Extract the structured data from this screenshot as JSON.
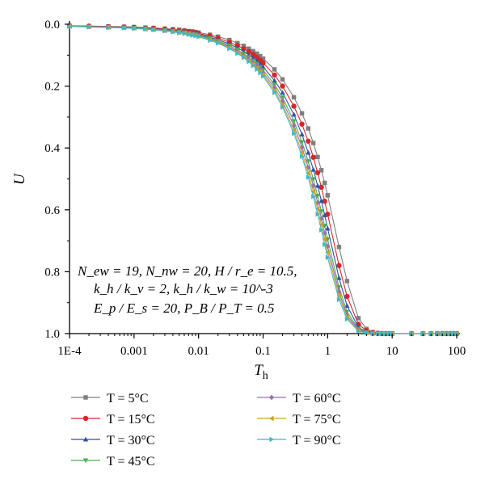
{
  "chart_data": {
    "type": "line",
    "title": "",
    "xlabel": "T_h",
    "ylabel": "U",
    "xscale": "log",
    "xlim": [
      0.0001,
      100
    ],
    "ylim": [
      1.0,
      0.0
    ],
    "y_inverted": true,
    "grid": false,
    "legend_position": "bottom",
    "x_ticks": [
      0.0001,
      0.001,
      0.01,
      0.1,
      1,
      10,
      100
    ],
    "x_tick_labels": [
      "1E-4",
      "0.001",
      "0.01",
      "0.1",
      "1",
      "10",
      "100"
    ],
    "y_ticks": [
      0.0,
      0.2,
      0.4,
      0.6,
      0.8,
      1.0
    ],
    "y_tick_labels": [
      "0.0",
      "0.2",
      "0.4",
      "0.6",
      "0.8",
      "1.0"
    ],
    "annotation": {
      "line1": "N_ew = 19, N_nw = 20, H / r_e = 10.5,",
      "line2": "k_h / k_v = 2, k_h / k_w = 10^-3",
      "line3": "E_p / E_s = 20, P_B / P_T = 0.5"
    },
    "x_samples": [
      0.0001,
      0.0002,
      0.0004,
      0.0007,
      0.001,
      0.0015,
      0.002,
      0.003,
      0.004,
      0.005,
      0.006,
      0.007,
      0.008,
      0.009,
      0.01,
      0.015,
      0.02,
      0.03,
      0.04,
      0.05,
      0.06,
      0.07,
      0.08,
      0.09,
      0.1,
      0.15,
      0.2,
      0.3,
      0.4,
      0.5,
      0.6,
      0.7,
      0.8,
      0.9,
      1,
      1.5,
      2,
      3,
      4,
      5,
      6,
      7,
      8,
      9,
      10,
      20,
      30,
      40,
      50,
      60,
      70,
      80,
      90,
      100
    ],
    "series": [
      {
        "name": "T = 5°C",
        "color": "#7f7f7f",
        "marker": "square",
        "values": [
          0.005,
          0.006,
          0.007,
          0.008,
          0.009,
          0.011,
          0.012,
          0.014,
          0.016,
          0.018,
          0.02,
          0.022,
          0.023,
          0.025,
          0.027,
          0.034,
          0.04,
          0.051,
          0.061,
          0.07,
          0.079,
          0.087,
          0.095,
          0.103,
          0.111,
          0.146,
          0.178,
          0.236,
          0.288,
          0.337,
          0.384,
          0.429,
          0.472,
          0.513,
          0.553,
          0.72,
          0.83,
          0.95,
          0.985,
          0.995,
          0.998,
          0.999,
          1.0,
          1.0,
          1.0,
          1.0,
          1.0,
          1.0,
          1.0,
          1.0,
          1.0,
          1.0,
          1.0,
          1.0
        ]
      },
      {
        "name": "T = 15°C",
        "color": "#d62728",
        "marker": "circle",
        "values": [
          0.005,
          0.006,
          0.008,
          0.009,
          0.01,
          0.012,
          0.013,
          0.016,
          0.018,
          0.02,
          0.022,
          0.024,
          0.026,
          0.028,
          0.03,
          0.038,
          0.045,
          0.058,
          0.069,
          0.079,
          0.089,
          0.098,
          0.107,
          0.116,
          0.125,
          0.164,
          0.2,
          0.265,
          0.323,
          0.378,
          0.43,
          0.48,
          0.527,
          0.572,
          0.614,
          0.78,
          0.88,
          0.97,
          0.99,
          0.997,
          0.999,
          1.0,
          1.0,
          1.0,
          1.0,
          1.0,
          1.0,
          1.0,
          1.0,
          1.0,
          1.0,
          1.0,
          1.0,
          1.0
        ]
      },
      {
        "name": "T = 30°C",
        "color": "#2f52a8",
        "marker": "triangle-up",
        "values": [
          0.006,
          0.007,
          0.009,
          0.01,
          0.011,
          0.013,
          0.015,
          0.018,
          0.02,
          0.022,
          0.025,
          0.027,
          0.029,
          0.031,
          0.033,
          0.042,
          0.05,
          0.064,
          0.076,
          0.088,
          0.099,
          0.109,
          0.119,
          0.128,
          0.138,
          0.182,
          0.221,
          0.292,
          0.356,
          0.415,
          0.47,
          0.522,
          0.571,
          0.617,
          0.66,
          0.82,
          0.91,
          0.98,
          0.994,
          0.998,
          0.999,
          1.0,
          1.0,
          1.0,
          1.0,
          1.0,
          1.0,
          1.0,
          1.0,
          1.0,
          1.0,
          1.0,
          1.0,
          1.0
        ]
      },
      {
        "name": "T = 45°C",
        "color": "#4caf50",
        "marker": "triangle-down",
        "values": [
          0.006,
          0.008,
          0.009,
          0.011,
          0.012,
          0.014,
          0.016,
          0.019,
          0.022,
          0.024,
          0.027,
          0.029,
          0.031,
          0.033,
          0.036,
          0.045,
          0.054,
          0.069,
          0.082,
          0.095,
          0.107,
          0.118,
          0.128,
          0.138,
          0.148,
          0.195,
          0.237,
          0.313,
          0.381,
          0.443,
          0.501,
          0.555,
          0.605,
          0.652,
          0.695,
          0.85,
          0.93,
          0.985,
          0.996,
          0.999,
          1.0,
          1.0,
          1.0,
          1.0,
          1.0,
          1.0,
          1.0,
          1.0,
          1.0,
          1.0,
          1.0,
          1.0,
          1.0,
          1.0
        ]
      },
      {
        "name": "T = 60°C",
        "color": "#9b6fb5",
        "marker": "diamond",
        "values": [
          0.007,
          0.008,
          0.01,
          0.011,
          0.013,
          0.015,
          0.017,
          0.02,
          0.023,
          0.026,
          0.028,
          0.031,
          0.033,
          0.035,
          0.038,
          0.048,
          0.057,
          0.073,
          0.087,
          0.1,
          0.112,
          0.124,
          0.135,
          0.146,
          0.156,
          0.205,
          0.249,
          0.328,
          0.398,
          0.463,
          0.522,
          0.577,
          0.628,
          0.675,
          0.718,
          0.865,
          0.94,
          0.988,
          0.997,
          0.999,
          1.0,
          1.0,
          1.0,
          1.0,
          1.0,
          1.0,
          1.0,
          1.0,
          1.0,
          1.0,
          1.0,
          1.0,
          1.0,
          1.0
        ]
      },
      {
        "name": "T = 75°C",
        "color": "#c9a227",
        "marker": "triangle-left",
        "values": [
          0.007,
          0.008,
          0.01,
          0.012,
          0.013,
          0.016,
          0.018,
          0.021,
          0.024,
          0.027,
          0.029,
          0.032,
          0.034,
          0.037,
          0.039,
          0.05,
          0.059,
          0.076,
          0.091,
          0.104,
          0.117,
          0.129,
          0.141,
          0.152,
          0.163,
          0.214,
          0.26,
          0.342,
          0.414,
          0.481,
          0.541,
          0.597,
          0.648,
          0.695,
          0.737,
          0.878,
          0.947,
          0.99,
          0.998,
          1.0,
          1.0,
          1.0,
          1.0,
          1.0,
          1.0,
          1.0,
          1.0,
          1.0,
          1.0,
          1.0,
          1.0,
          1.0,
          1.0,
          1.0
        ]
      },
      {
        "name": "T = 90°C",
        "color": "#41b8c8",
        "marker": "triangle-right",
        "values": [
          0.007,
          0.009,
          0.011,
          0.012,
          0.014,
          0.016,
          0.018,
          0.022,
          0.025,
          0.028,
          0.03,
          0.033,
          0.036,
          0.038,
          0.04,
          0.052,
          0.061,
          0.079,
          0.094,
          0.108,
          0.121,
          0.134,
          0.146,
          0.157,
          0.168,
          0.221,
          0.268,
          0.353,
          0.427,
          0.495,
          0.557,
          0.614,
          0.665,
          0.712,
          0.754,
          0.89,
          0.953,
          0.992,
          0.998,
          1.0,
          1.0,
          1.0,
          1.0,
          1.0,
          1.0,
          1.0,
          1.0,
          1.0,
          1.0,
          1.0,
          1.0,
          1.0,
          1.0,
          1.0
        ]
      }
    ]
  }
}
